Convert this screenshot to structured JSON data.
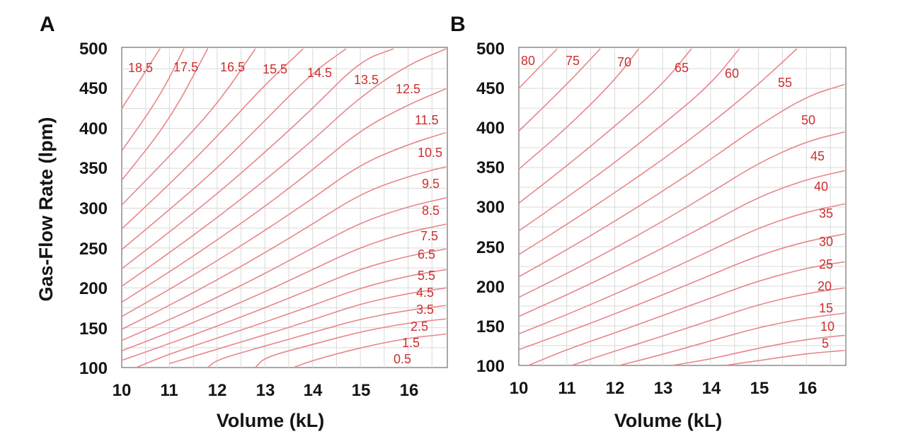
{
  "chart_data": [
    {
      "panel_label": "A",
      "type": "line",
      "subtype": "contour",
      "xlabel": "Volume (kL)",
      "ylabel": "Gas-Flow Rate (lpm)",
      "xlim": [
        10,
        16.8
      ],
      "ylim": [
        100,
        500
      ],
      "x_ticks": [
        "10",
        "11",
        "12",
        "13",
        "14",
        "15",
        "16"
      ],
      "y_ticks": [
        "100",
        "150",
        "200",
        "250",
        "300",
        "350",
        "400",
        "450",
        "500"
      ],
      "grid": true,
      "contour_labels": [
        "18.5",
        "17.5",
        "16.5",
        "15.5",
        "14.5",
        "13.5",
        "12.5",
        "11.5",
        "10.5",
        "9.5",
        "8.5",
        "7.5",
        "6.5",
        "5.5",
        "4.5",
        "3.5",
        "2.5",
        "1.5",
        "0.5"
      ],
      "contours": [
        {
          "label": "18.5",
          "x": [
            10.0,
            10.8
          ],
          "y": [
            425,
            500
          ]
        },
        {
          "label": "17.5",
          "x": [
            10.0,
            10.8,
            11.3
          ],
          "y": [
            372,
            440,
            500
          ]
        },
        {
          "label": "16.5",
          "x": [
            10.0,
            11.0,
            11.8
          ],
          "y": [
            335,
            410,
            500
          ]
        },
        {
          "label": "15.5",
          "x": [
            10.0,
            11.0,
            12.0,
            12.8
          ],
          "y": [
            304,
            365,
            430,
            500
          ]
        },
        {
          "label": "14.5",
          "x": [
            10.0,
            11.0,
            12.0,
            13.0,
            13.8
          ],
          "y": [
            274,
            330,
            390,
            455,
            500
          ]
        },
        {
          "label": "13.5",
          "x": [
            10.0,
            11.0,
            12.0,
            13.0,
            14.0,
            14.7
          ],
          "y": [
            248,
            298,
            350,
            410,
            470,
            500
          ]
        },
        {
          "label": "12.5",
          "x": [
            10.0,
            11.0,
            12.0,
            13.0,
            14.0,
            15.0,
            15.7
          ],
          "y": [
            224,
            270,
            318,
            370,
            425,
            485,
            500
          ]
        },
        {
          "label": "11.5",
          "x": [
            10.0,
            11.0,
            12.0,
            13.0,
            14.0,
            15.0,
            16.0,
            16.8
          ],
          "y": [
            202,
            244,
            288,
            335,
            385,
            440,
            480,
            500
          ]
        },
        {
          "label": "10.5",
          "x": [
            10.0,
            11.0,
            12.0,
            13.0,
            14.0,
            15.0,
            16.0,
            16.8
          ],
          "y": [
            182,
            220,
            260,
            302,
            348,
            398,
            430,
            450
          ]
        },
        {
          "label": "9.5",
          "x": [
            10.0,
            11.0,
            12.0,
            13.0,
            14.0,
            15.0,
            16.0,
            16.8
          ],
          "y": [
            164,
            198,
            234,
            272,
            312,
            355,
            380,
            395
          ]
        },
        {
          "label": "8.5",
          "x": [
            10.0,
            11.0,
            12.0,
            13.0,
            14.0,
            15.0,
            16.0,
            16.8
          ],
          "y": [
            148,
            178,
            210,
            244,
            280,
            318,
            340,
            352
          ]
        },
        {
          "label": "7.5",
          "x": [
            10.0,
            11.0,
            12.0,
            13.0,
            14.0,
            15.0,
            16.0,
            16.8
          ],
          "y": [
            134,
            160,
            188,
            218,
            250,
            282,
            302,
            313
          ]
        },
        {
          "label": "6.5",
          "x": [
            10.0,
            11.0,
            12.0,
            13.0,
            14.0,
            15.0,
            16.0,
            16.8
          ],
          "y": [
            121,
            144,
            169,
            195,
            223,
            251,
            270,
            280
          ]
        },
        {
          "label": "5.5",
          "x": [
            10.0,
            11.0,
            12.0,
            13.0,
            14.0,
            15.0,
            16.0,
            16.8
          ],
          "y": [
            109,
            130,
            152,
            175,
            199,
            224,
            240,
            249
          ]
        },
        {
          "label": "4.5",
          "x": [
            10.3,
            11.0,
            12.0,
            13.0,
            14.0,
            15.0,
            16.0,
            16.8
          ],
          "y": [
            100,
            117,
            137,
            157,
            178,
            200,
            215,
            223
          ]
        },
        {
          "label": "3.5",
          "x": [
            11.0,
            12.0,
            13.0,
            14.0,
            15.0,
            16.0,
            16.8
          ],
          "y": [
            105,
            123,
            141,
            160,
            180,
            193,
            200
          ]
        },
        {
          "label": "2.5",
          "x": [
            11.8,
            12.0,
            13.0,
            14.0,
            15.0,
            16.0,
            16.8
          ],
          "y": [
            100,
            110,
            127,
            144,
            161,
            172,
            178
          ]
        },
        {
          "label": "1.5",
          "x": [
            12.8,
            13.0,
            14.0,
            15.0,
            16.0,
            16.8
          ],
          "y": [
            100,
            113,
            129,
            145,
            156,
            161
          ]
        },
        {
          "label": "0.5",
          "x": [
            13.6,
            14.0,
            15.0,
            16.0,
            16.8
          ],
          "y": [
            100,
            109,
            125,
            137,
            142
          ]
        }
      ]
    },
    {
      "panel_label": "B",
      "type": "line",
      "subtype": "contour",
      "xlabel": "Volume (kL)",
      "ylabel": "",
      "xlim": [
        10,
        16.8
      ],
      "ylim": [
        100,
        500
      ],
      "x_ticks": [
        "10",
        "11",
        "12",
        "13",
        "14",
        "15",
        "16"
      ],
      "y_ticks": [
        "100",
        "150",
        "200",
        "250",
        "300",
        "350",
        "400",
        "450",
        "500"
      ],
      "grid": true,
      "contour_labels": [
        "80",
        "75",
        "70",
        "65",
        "60",
        "55",
        "50",
        "45",
        "40",
        "35",
        "30",
        "25",
        "20",
        "15",
        "10",
        "5"
      ],
      "contours": [
        {
          "label": "80",
          "x": [
            10.0,
            10.8
          ],
          "y": [
            450,
            500
          ]
        },
        {
          "label": "75",
          "x": [
            10.0,
            11.0,
            11.7
          ],
          "y": [
            396,
            455,
            500
          ]
        },
        {
          "label": "70",
          "x": [
            10.0,
            11.0,
            12.0,
            12.5
          ],
          "y": [
            348,
            400,
            460,
            500
          ]
        },
        {
          "label": "65",
          "x": [
            10.0,
            11.0,
            12.0,
            13.0,
            13.6
          ],
          "y": [
            305,
            352,
            402,
            455,
            500
          ]
        },
        {
          "label": "60",
          "x": [
            10.0,
            11.0,
            12.0,
            13.0,
            14.0,
            14.6
          ],
          "y": [
            270,
            312,
            356,
            404,
            455,
            500
          ]
        },
        {
          "label": "55",
          "x": [
            10.0,
            11.0,
            12.0,
            13.0,
            14.0,
            15.0,
            15.8
          ],
          "y": [
            240,
            278,
            318,
            360,
            405,
            455,
            500
          ]
        },
        {
          "label": "50",
          "x": [
            10.0,
            11.0,
            12.0,
            13.0,
            14.0,
            15.0,
            16.0,
            16.8
          ],
          "y": [
            212,
            246,
            282,
            320,
            360,
            403,
            440,
            455
          ]
        },
        {
          "label": "45",
          "x": [
            10.0,
            11.0,
            12.0,
            13.0,
            14.0,
            15.0,
            16.0,
            16.8
          ],
          "y": [
            186,
            216,
            248,
            282,
            318,
            356,
            383,
            395
          ]
        },
        {
          "label": "40",
          "x": [
            10.0,
            11.0,
            12.0,
            13.0,
            14.0,
            15.0,
            16.0,
            16.8
          ],
          "y": [
            162,
            189,
            218,
            248,
            280,
            313,
            335,
            346
          ]
        },
        {
          "label": "35",
          "x": [
            10.0,
            11.0,
            12.0,
            13.0,
            14.0,
            15.0,
            16.0,
            16.8
          ],
          "y": [
            140,
            164,
            190,
            217,
            245,
            274,
            294,
            304
          ]
        },
        {
          "label": "30",
          "x": [
            10.0,
            11.0,
            12.0,
            13.0,
            14.0,
            15.0,
            16.0,
            16.8
          ],
          "y": [
            120,
            142,
            165,
            189,
            214,
            239,
            257,
            266
          ]
        },
        {
          "label": "25",
          "x": [
            10.2,
            11.0,
            12.0,
            13.0,
            14.0,
            15.0,
            16.0,
            16.8
          ],
          "y": [
            100,
            120,
            141,
            163,
            185,
            207,
            223,
            231
          ]
        },
        {
          "label": "20",
          "x": [
            11.1,
            12.0,
            13.0,
            14.0,
            15.0,
            16.0,
            16.8
          ],
          "y": [
            100,
            118,
            137,
            157,
            177,
            191,
            198
          ]
        },
        {
          "label": "15",
          "x": [
            12.1,
            13.0,
            14.0,
            15.0,
            16.0,
            16.8
          ],
          "y": [
            100,
            114,
            131,
            148,
            160,
            166
          ]
        },
        {
          "label": "10",
          "x": [
            13.2,
            14.0,
            15.0,
            16.0,
            16.8
          ],
          "y": [
            100,
            108,
            122,
            133,
            138
          ]
        },
        {
          "label": "5",
          "x": [
            14.3,
            15.0,
            16.0,
            16.8
          ],
          "y": [
            100,
            106,
            115,
            119
          ]
        }
      ]
    }
  ]
}
